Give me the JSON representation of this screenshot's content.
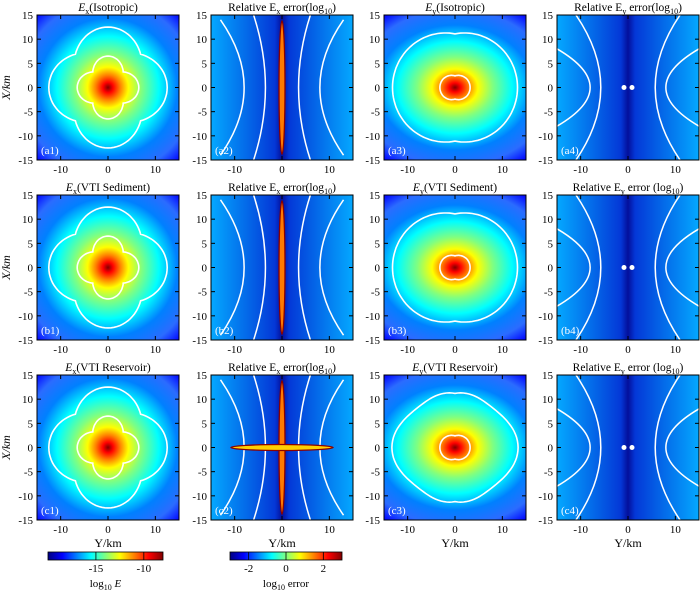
{
  "figure": {
    "type": "field-map-grid",
    "rows": 3,
    "cols": 4,
    "x_axis_label": "Y/km",
    "y_axis_label": "X/km",
    "x_ticks": [
      -10,
      0,
      10
    ],
    "y_ticks": [
      15,
      10,
      5,
      0,
      -5,
      -10,
      -15
    ],
    "x_range": [
      -15,
      15
    ],
    "y_range": [
      -15,
      15
    ]
  },
  "panels": [
    {
      "label": "(a1)",
      "title_main": "E",
      "title_sub": "x",
      "title_rest": "(Isotropic)",
      "kind": "Ex-field",
      "variant": "iso"
    },
    {
      "label": "(a2)",
      "title_main": "Relative E",
      "title_sub": "x",
      "title_rest": " error(log",
      "title_rest_sub": "10",
      "title_end": ")",
      "kind": "Ex-error",
      "variant": "iso"
    },
    {
      "label": "(a3)",
      "title_main": "E",
      "title_sub": "y",
      "title_rest": "(Isotropic)",
      "kind": "Ey-field",
      "variant": "iso"
    },
    {
      "label": "(a4)",
      "title_main": "Relative E",
      "title_sub": "y",
      "title_rest": " error(log",
      "title_rest_sub": "10",
      "title_end": ")",
      "kind": "Ey-error",
      "variant": "iso"
    },
    {
      "label": "(b1)",
      "title_main": "E",
      "title_sub": "x",
      "title_rest": "(VTI Sediment)",
      "kind": "Ex-field",
      "variant": "sed"
    },
    {
      "label": "(b2)",
      "title_main": "Relative E",
      "title_sub": "x",
      "title_rest": " error(log",
      "title_rest_sub": "10",
      "title_end": ")",
      "kind": "Ex-error",
      "variant": "sed"
    },
    {
      "label": "(b3)",
      "title_main": "E",
      "title_sub": "y",
      "title_rest": "(VTI Sediment)",
      "kind": "Ey-field",
      "variant": "sed"
    },
    {
      "label": "(b4)",
      "title_main": "Relative E",
      "title_sub": "y",
      "title_rest": " error (log",
      "title_rest_sub": "10",
      "title_end": ")",
      "kind": "Ey-error",
      "variant": "sed"
    },
    {
      "label": "(c1)",
      "title_main": "E",
      "title_sub": "x",
      "title_rest": "(VTI Reservoir)",
      "kind": "Ex-field",
      "variant": "res"
    },
    {
      "label": "(c2)",
      "title_main": "Relative E",
      "title_sub": "x",
      "title_rest": " error(log",
      "title_rest_sub": "10",
      "title_end": ")",
      "kind": "Ex-error",
      "variant": "res"
    },
    {
      "label": "(c3)",
      "title_main": "E",
      "title_sub": "y",
      "title_rest": "(VTI Reservoir)",
      "kind": "Ey-field",
      "variant": "res"
    },
    {
      "label": "(c4)",
      "title_main": "Relative E",
      "title_sub": "y",
      "title_rest": " error (log",
      "title_rest_sub": "10",
      "title_end": ")",
      "kind": "Ey-error",
      "variant": "res"
    }
  ],
  "colorbars": [
    {
      "name": "field",
      "ticks": [
        -15,
        -10
      ],
      "range": [
        -20,
        -8
      ],
      "label_main": "log",
      "label_sub": "10",
      "label_rest": " E"
    },
    {
      "name": "error",
      "ticks": [
        -2,
        0,
        2
      ],
      "range": [
        -3,
        3
      ],
      "label_main": "log",
      "label_sub": "10",
      "label_rest": " error"
    }
  ],
  "colors": {
    "colormap": [
      "#000080",
      "#0000ff",
      "#0080ff",
      "#00ffff",
      "#80ff80",
      "#ffff00",
      "#ff8000",
      "#ff0000",
      "#800000"
    ],
    "contour": "#ffffff",
    "error_contour": "#8b0000"
  }
}
